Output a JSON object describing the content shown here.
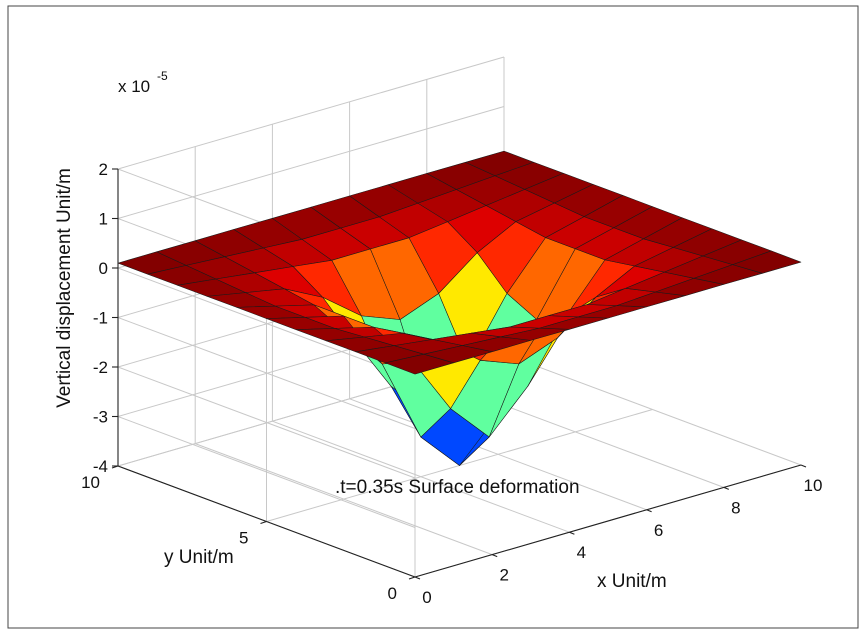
{
  "chart_data": {
    "type": "surface",
    "title": "",
    "annotation": ".t=0.35s Surface deformation",
    "xlabel": "x  Unit/m",
    "ylabel": "y  Unit/m",
    "zlabel": "Vertical displacement  Unit/m",
    "z_multiplier_label": "x 10",
    "z_multiplier_exponent": "-5",
    "xlim": [
      0,
      10
    ],
    "ylim": [
      0,
      10
    ],
    "zlim": [
      -4,
      2
    ],
    "xticks": [
      "0",
      "2",
      "4",
      "6",
      "8",
      "10"
    ],
    "yticks": [
      "0",
      "5",
      "10"
    ],
    "zticks": [
      "2",
      "1",
      "0",
      "-1",
      "-2",
      "-3",
      "-4"
    ],
    "grid": true,
    "colormap": "jet",
    "surface": {
      "description_of_shape": "flat plane near z=0 with a funnel-shaped depression centred near x=5, y=5",
      "x": [
        0,
        1,
        2,
        3,
        4,
        5,
        6,
        7,
        8,
        9,
        10
      ],
      "y": [
        0,
        1,
        2,
        3,
        4,
        5,
        6,
        7,
        8,
        9,
        10
      ],
      "z": [
        [
          0.1,
          0.1,
          0.1,
          0.1,
          0.1,
          0.1,
          0.1,
          0.1,
          0.1,
          0.1,
          0.1
        ],
        [
          0.1,
          0.05,
          0.0,
          -0.05,
          -0.1,
          -0.1,
          -0.1,
          -0.05,
          0.0,
          0.05,
          0.1
        ],
        [
          0.1,
          0.0,
          -0.1,
          -0.2,
          -0.3,
          -0.3,
          -0.3,
          -0.2,
          -0.1,
          0.0,
          0.1
        ],
        [
          0.1,
          -0.05,
          -0.2,
          -0.6,
          -1.2,
          -1.5,
          -1.2,
          -0.6,
          -0.2,
          -0.05,
          0.1
        ],
        [
          0.1,
          -0.1,
          -0.3,
          -1.2,
          -2.4,
          -3.2,
          -2.4,
          -1.2,
          -0.3,
          -0.1,
          0.1
        ],
        [
          0.1,
          -0.1,
          -0.3,
          -1.5,
          -3.2,
          -4.0,
          -3.2,
          -1.5,
          -0.3,
          -0.1,
          0.1
        ],
        [
          0.1,
          -0.1,
          -0.3,
          -1.2,
          -2.4,
          -3.2,
          -2.4,
          -1.2,
          -0.3,
          -0.1,
          0.1
        ],
        [
          0.1,
          -0.05,
          -0.2,
          -0.6,
          -1.2,
          -1.5,
          -1.2,
          -0.6,
          -0.2,
          -0.05,
          0.1
        ],
        [
          0.1,
          0.0,
          -0.1,
          -0.2,
          -0.3,
          -0.3,
          -0.3,
          -0.2,
          -0.1,
          0.0,
          0.1
        ],
        [
          0.1,
          0.05,
          0.0,
          -0.05,
          -0.1,
          -0.1,
          -0.1,
          -0.05,
          0.0,
          0.05,
          0.1
        ],
        [
          0.1,
          0.1,
          0.1,
          0.1,
          0.1,
          0.1,
          0.1,
          0.1,
          0.1,
          0.1,
          0.1
        ]
      ]
    }
  }
}
